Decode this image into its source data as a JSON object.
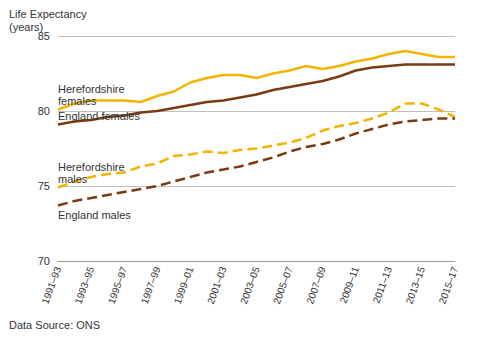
{
  "chart_data": {
    "type": "line",
    "y_label": "Life Expectancy\n(years)",
    "annotations": [
      "Data Source: ONS"
    ],
    "categories": [
      "1991–93",
      null,
      "1993–95",
      null,
      "1995–97",
      null,
      "1997–99",
      null,
      "1999–01",
      null,
      "2001–03",
      null,
      "2003–05",
      null,
      "2005–07",
      null,
      "2007–09",
      null,
      "2009–11",
      null,
      "2011–13",
      null,
      "2013–15",
      null,
      "2015–17"
    ],
    "series": [
      {
        "name": "Herefordshire females",
        "color": "#f2b400",
        "line_style": "solid",
        "values": [
          80.1,
          80.5,
          80.7,
          80.7,
          80.7,
          80.6,
          81.0,
          81.3,
          81.9,
          82.2,
          82.4,
          82.4,
          82.2,
          82.5,
          82.7,
          83.0,
          82.8,
          83.0,
          83.3,
          83.5,
          83.8,
          84.0,
          83.8,
          83.6,
          83.6
        ]
      },
      {
        "name": "England females",
        "color": "#7b3b12",
        "line_style": "solid",
        "values": [
          79.1,
          79.3,
          79.4,
          79.6,
          79.7,
          79.9,
          80.0,
          80.2,
          80.4,
          80.6,
          80.7,
          80.9,
          81.1,
          81.4,
          81.6,
          81.8,
          82.0,
          82.3,
          82.7,
          82.9,
          83.0,
          83.1,
          83.1,
          83.1,
          83.1
        ]
      },
      {
        "name": "Herefordshire males",
        "color": "#f2b400",
        "line_style": "dashed",
        "values": [
          74.9,
          75.3,
          75.6,
          75.8,
          75.9,
          76.3,
          76.5,
          77.0,
          77.1,
          77.3,
          77.2,
          77.4,
          77.5,
          77.7,
          77.9,
          78.2,
          78.7,
          79.0,
          79.2,
          79.5,
          79.9,
          80.5,
          80.5,
          80.1,
          79.6
        ]
      },
      {
        "name": "England males",
        "color": "#7b3b12",
        "line_style": "dashed",
        "values": [
          73.7,
          74.0,
          74.2,
          74.4,
          74.6,
          74.8,
          75.0,
          75.3,
          75.6,
          75.9,
          76.1,
          76.3,
          76.6,
          76.9,
          77.3,
          77.6,
          77.8,
          78.1,
          78.5,
          78.8,
          79.1,
          79.3,
          79.4,
          79.5,
          79.5
        ]
      }
    ],
    "ylim": [
      70,
      85
    ],
    "yticks": [
      70,
      75,
      80,
      85
    ],
    "grid": true
  }
}
